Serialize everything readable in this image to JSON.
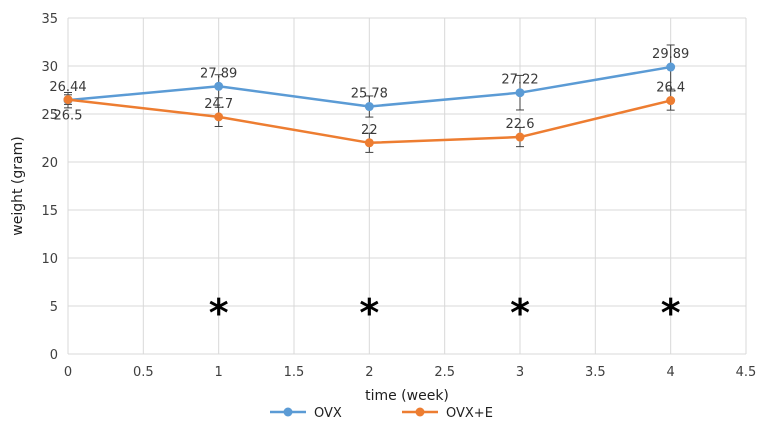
{
  "chart_data": {
    "type": "line",
    "xlabel": "time (week)",
    "ylabel": "weight (gram)",
    "xlim": [
      0,
      4.5
    ],
    "ylim": [
      0,
      35
    ],
    "x_ticks": [
      "0",
      "0.5",
      "1",
      "1.5",
      "2",
      "2.5",
      "3",
      "3.5",
      "4",
      "4.5"
    ],
    "y_ticks": [
      "0",
      "5",
      "10",
      "15",
      "20",
      "25",
      "30",
      "35"
    ],
    "grid": true,
    "legend": "bottom",
    "x": [
      0,
      1,
      2,
      3,
      4
    ],
    "series": [
      {
        "name": "OVX",
        "color": "#5b9bd5",
        "values": [
          26.44,
          27.89,
          25.78,
          27.22,
          29.89
        ],
        "labels": [
          "26.44",
          "27.89",
          "25.78",
          "27.22",
          "29.89"
        ],
        "error": [
          0.8,
          1.2,
          1.1,
          1.8,
          2.3
        ]
      },
      {
        "name": "OVX+E",
        "color": "#ed7d31",
        "values": [
          26.5,
          24.7,
          22,
          22.6,
          26.4
        ],
        "labels": [
          "26.5",
          "24.7",
          "22",
          "22.6",
          "26.4"
        ],
        "error": [
          0.5,
          1.0,
          1.0,
          1.0,
          1.0
        ]
      }
    ],
    "significance_markers": [
      {
        "x": 1,
        "y": 5,
        "text": "*"
      },
      {
        "x": 2,
        "y": 5,
        "text": "*"
      },
      {
        "x": 3,
        "y": 5,
        "text": "*"
      },
      {
        "x": 4,
        "y": 5,
        "text": "*"
      }
    ]
  }
}
